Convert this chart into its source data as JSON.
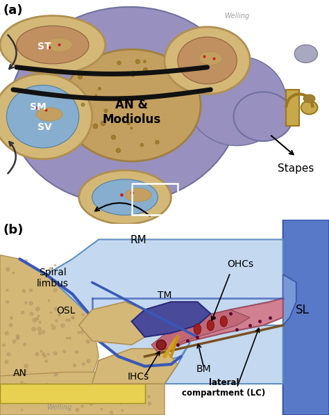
{
  "bg": "#ffffff",
  "fig_width": 4.74,
  "fig_height": 5.97,
  "panel_a": {
    "label": "(a)",
    "outer_blob_color": "#9890BE",
    "bone_color": "#D4B878",
    "bone_edge": "#B09050",
    "fluid_blue": "#87AECE",
    "modiolus_color": "#C4A060",
    "modiolus_dark": "#8B6914",
    "bm_color": "#111111",
    "red_dot": "#CC2222",
    "stapes_color": "#C8A84A",
    "stapes_edge": "#9A7820",
    "arrow_color": "#333333",
    "white_box_color": "#ffffff",
    "an_text": "AN &\nModiolus",
    "sv_text": "SV",
    "sm_text": "SM",
    "st_text": "ST",
    "stapes_text": "Stapes",
    "watermark": "Welling"
  },
  "panel_b": {
    "label": "(b)",
    "bone_color": "#D4B878",
    "bone_edge": "#B09050",
    "blue_wall": "#5B7EC9",
    "blue_wall_light": "#7B9EE9",
    "fluid_sv": "#B8D4F0",
    "fluid_st": "#B8D4F0",
    "scala_media_pink": "#D4848C",
    "scala_media_dark": "#B86878",
    "tectorial_purple": "#5858A8",
    "bm_color": "#7A5020",
    "an_yellow": "#E8D050",
    "an_yellow_edge": "#A09020",
    "osl_color": "#D4B878",
    "spiral_limbus_color": "#D4B878",
    "reissner_blue": "#4060B0",
    "rm_text": "RM",
    "tm_text": "TM",
    "ohcs_text": "OHCs",
    "ihcs_text": "IHCs",
    "bm_text": "BM",
    "osl_text": "OSL",
    "an_text": "AN",
    "sl_text": "SL",
    "spiral_text": "Spiral\nlimbus",
    "lc_text": "lateral\ncompartment (LC)",
    "watermark": "Welling"
  }
}
